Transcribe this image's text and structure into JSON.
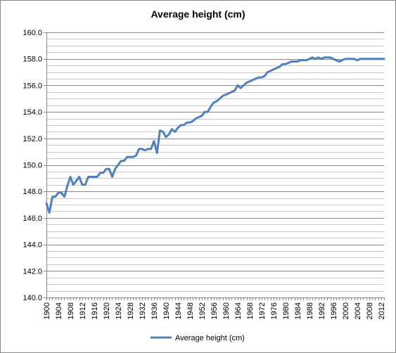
{
  "chart_data": {
    "type": "line",
    "title": "Average height (cm)",
    "xlabel": "",
    "ylabel": "",
    "ylim": [
      140,
      160
    ],
    "ytick_step": 2,
    "ytick_labels": [
      "140.0",
      "142.0",
      "144.0",
      "146.0",
      "148.0",
      "150.0",
      "152.0",
      "154.0",
      "156.0",
      "158.0",
      "160.0"
    ],
    "xlim": [
      1900,
      2013
    ],
    "xtick_labels": [
      "1900",
      "1904",
      "1908",
      "1912",
      "1916",
      "1920",
      "1924",
      "1928",
      "1932",
      "1936",
      "1940",
      "1944",
      "1948",
      "1952",
      "1956",
      "1960",
      "1964",
      "1968",
      "1972",
      "1976",
      "1980",
      "1984",
      "1988",
      "1992",
      "1996",
      "2000",
      "2004",
      "2008",
      "2012"
    ],
    "grid": true,
    "legend": "bottom",
    "series": [
      {
        "name": "Average height (cm)",
        "color": "#4F81BD",
        "x": [
          1900,
          1901,
          1902,
          1903,
          1904,
          1905,
          1906,
          1907,
          1908,
          1909,
          1910,
          1911,
          1912,
          1913,
          1914,
          1915,
          1916,
          1917,
          1918,
          1919,
          1920,
          1921,
          1922,
          1923,
          1924,
          1925,
          1926,
          1927,
          1928,
          1929,
          1930,
          1931,
          1932,
          1933,
          1934,
          1935,
          1936,
          1937,
          1938,
          1939,
          1940,
          1941,
          1942,
          1943,
          1944,
          1945,
          1946,
          1947,
          1948,
          1949,
          1950,
          1951,
          1952,
          1953,
          1954,
          1955,
          1956,
          1957,
          1958,
          1959,
          1960,
          1961,
          1962,
          1963,
          1964,
          1965,
          1966,
          1967,
          1968,
          1969,
          1970,
          1971,
          1972,
          1973,
          1974,
          1975,
          1976,
          1977,
          1978,
          1979,
          1980,
          1981,
          1982,
          1983,
          1984,
          1985,
          1986,
          1987,
          1988,
          1989,
          1990,
          1991,
          1992,
          1993,
          1994,
          1995,
          1996,
          1997,
          1998,
          1999,
          2000,
          2001,
          2002,
          2003,
          2004,
          2005,
          2006,
          2007,
          2008,
          2009,
          2010,
          2011,
          2012,
          2013
        ],
        "values": [
          147.1,
          146.4,
          147.6,
          147.6,
          147.9,
          147.9,
          147.6,
          148.4,
          149.1,
          148.5,
          148.8,
          149.1,
          148.5,
          148.5,
          149.1,
          149.1,
          149.1,
          149.1,
          149.4,
          149.4,
          149.7,
          149.7,
          149.1,
          149.7,
          150.0,
          150.3,
          150.3,
          150.6,
          150.6,
          150.6,
          150.7,
          151.2,
          151.2,
          151.1,
          151.2,
          151.2,
          151.8,
          150.9,
          152.6,
          152.5,
          152.1,
          152.3,
          152.7,
          152.5,
          152.8,
          153.0,
          153.0,
          153.2,
          153.2,
          153.3,
          153.5,
          153.6,
          153.7,
          154.0,
          154.0,
          154.4,
          154.7,
          154.8,
          155.0,
          155.2,
          155.3,
          155.4,
          155.5,
          155.6,
          156.0,
          155.8,
          156.0,
          156.2,
          156.3,
          156.4,
          156.5,
          156.6,
          156.6,
          156.7,
          157.0,
          157.1,
          157.2,
          157.3,
          157.4,
          157.6,
          157.6,
          157.7,
          157.8,
          157.8,
          157.8,
          157.9,
          157.9,
          157.9,
          158.0,
          158.1,
          158.0,
          158.1,
          158.0,
          158.1,
          158.1,
          158.1,
          158.0,
          157.9,
          157.8,
          157.9,
          158.0,
          158.0,
          158.0,
          158.0,
          157.9,
          158.0,
          158.0,
          158.0,
          158.0,
          158.0,
          158.0,
          158.0,
          158.0,
          158.0
        ]
      }
    ]
  }
}
